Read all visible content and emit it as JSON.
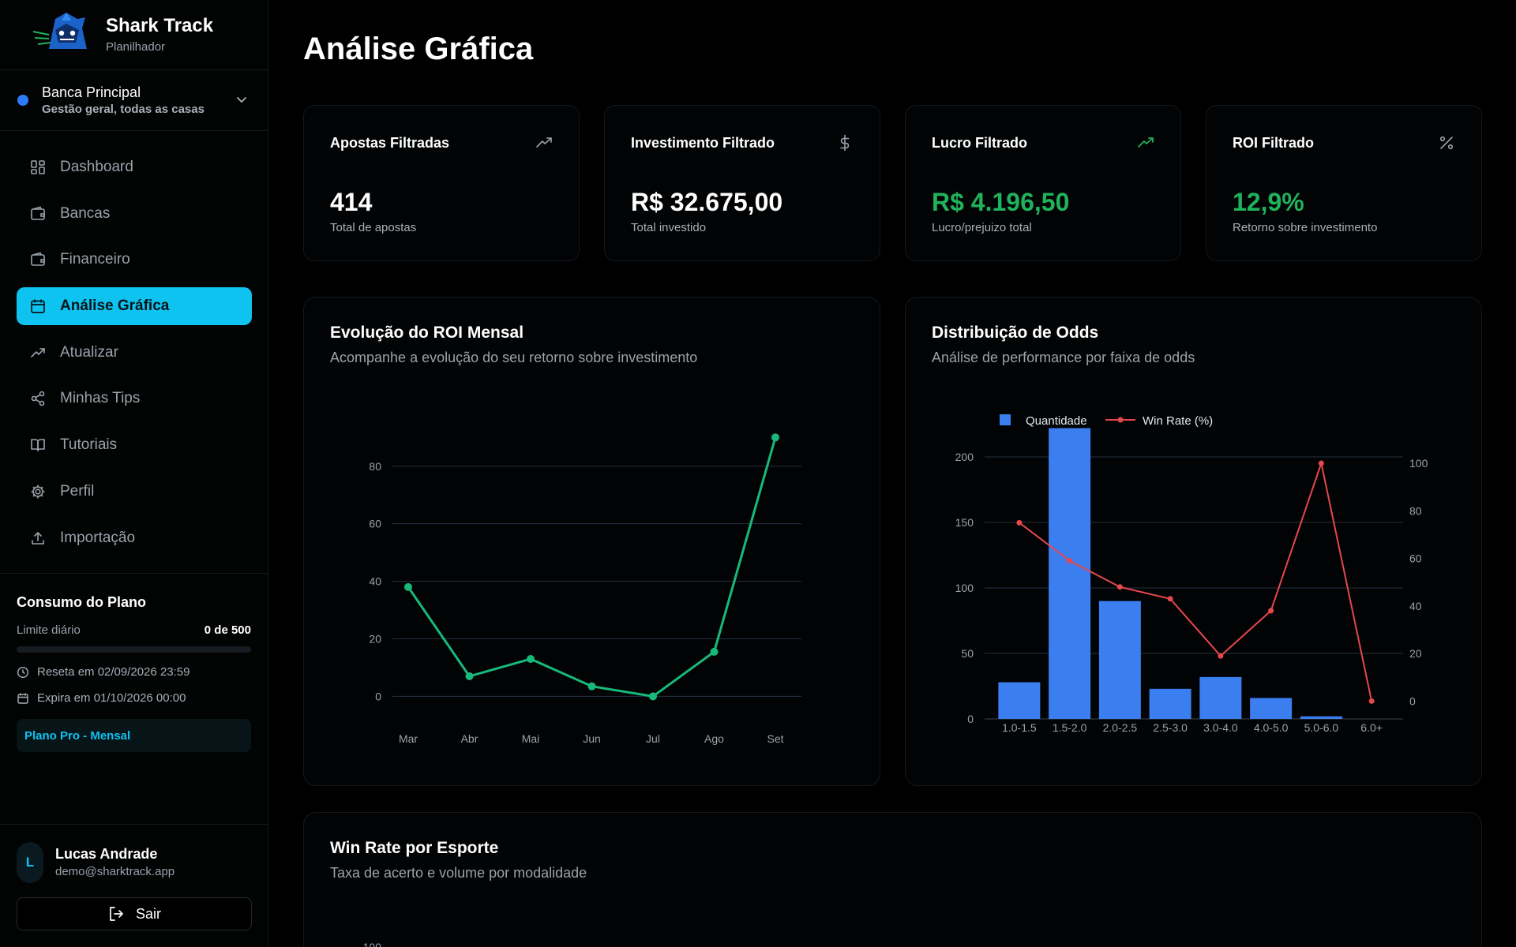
{
  "brand": {
    "name": "Shark Track",
    "subtitle": "Planilhador"
  },
  "bank": {
    "name": "Banca Principal",
    "description": "Gestão geral, todas as casas",
    "dot_color": "#2f7bf5"
  },
  "nav": [
    {
      "label": "Dashboard",
      "icon": "grid-icon",
      "active": false
    },
    {
      "label": "Bancas",
      "icon": "wallet-icon",
      "active": false
    },
    {
      "label": "Financeiro",
      "icon": "wallet-icon",
      "active": false
    },
    {
      "label": "Análise Gráfica",
      "icon": "calendar-icon",
      "active": true
    },
    {
      "label": "Atualizar",
      "icon": "trending-up-icon",
      "active": false
    },
    {
      "label": "Minhas Tips",
      "icon": "share-icon",
      "active": false
    },
    {
      "label": "Tutoriais",
      "icon": "book-icon",
      "active": false
    },
    {
      "label": "Perfil",
      "icon": "gear-icon",
      "active": false
    },
    {
      "label": "Importação",
      "icon": "upload-icon",
      "active": false
    }
  ],
  "plan": {
    "title": "Consumo do Plano",
    "limit_label": "Limite diário",
    "limit_value": "0 de 500",
    "usage_fraction": 0,
    "reset_text": "Reseta em 02/09/2026 23:59",
    "expire_text": "Expira em 01/10/2026 00:00",
    "badge": "Plano Pro - Mensal"
  },
  "user": {
    "initial": "L",
    "name": "Lucas Andrade",
    "email": "demo@sharktrack.app",
    "logout_label": "Sair"
  },
  "page": {
    "title": "Análise Gráfica"
  },
  "stats": [
    {
      "title": "Apostas Filtradas",
      "value": "414",
      "desc": "Total de apostas",
      "icon": "trending-up-icon",
      "positive": false
    },
    {
      "title": "Investimento Filtrado",
      "value": "R$ 32.675,00",
      "desc": "Total investido",
      "icon": "dollar-icon",
      "positive": false
    },
    {
      "title": "Lucro Filtrado",
      "value": "R$ 4.196,50",
      "desc": "Lucro/prejuizo total",
      "icon": "trending-up-icon",
      "positive": true
    },
    {
      "title": "ROI Filtrado",
      "value": "12,9%",
      "desc": "Retorno sobre investimento",
      "icon": "percent-icon",
      "positive": true
    }
  ],
  "roi_panel": {
    "title": "Evolução do ROI Mensal",
    "subtitle": "Acompanhe a evolução do seu retorno sobre investimento"
  },
  "odds_panel": {
    "title": "Distribuição de Odds",
    "subtitle": "Análise de performance por faixa de odds"
  },
  "sport_panel": {
    "title": "Win Rate por Esporte",
    "subtitle": "Taxa de acerto e volume por modalidade"
  },
  "colors": {
    "accent": "#0ec3ef",
    "positive": "#1fb35c",
    "line_roi": "#18b97a",
    "bar": "#3b7ef0",
    "winrate": "#e5484d"
  },
  "chart_data": [
    {
      "type": "line",
      "x": [
        "Mar",
        "Abr",
        "Mai",
        "Jun",
        "Jul",
        "Ago",
        "Set"
      ],
      "series": [
        {
          "values": [
            38,
            7,
            13,
            3.5,
            0,
            15.5,
            90
          ]
        }
      ],
      "y_ticks": [
        0,
        20,
        40,
        60,
        80
      ],
      "ylim": [
        -4,
        92
      ],
      "grid": true
    },
    {
      "type": "bar",
      "categories": [
        "1.0-1.5",
        "1.5-2.0",
        "2.0-2.5",
        "2.5-3.0",
        "3.0-4.0",
        "4.0-5.0",
        "5.0-6.0",
        "6.0+"
      ],
      "series": [
        {
          "name": "Quantidade",
          "type": "bar",
          "axis": "left",
          "values": [
            28,
            222,
            90,
            23,
            32,
            16,
            2,
            0
          ]
        },
        {
          "name": "Win Rate (%)",
          "type": "line",
          "axis": "right",
          "values": [
            75,
            59,
            48,
            43,
            19,
            38,
            100,
            0
          ]
        }
      ],
      "y_left_ticks": [
        0,
        50,
        100,
        150,
        200
      ],
      "y_left_lim": [
        0,
        200
      ],
      "y_right_ticks": [
        0,
        20,
        40,
        60,
        80,
        100
      ],
      "y_right_lim": [
        -7.5,
        100
      ],
      "legend": "top-center",
      "grid": true
    },
    {
      "type": "bar",
      "y_ticks_visible": [
        "100"
      ]
    }
  ]
}
